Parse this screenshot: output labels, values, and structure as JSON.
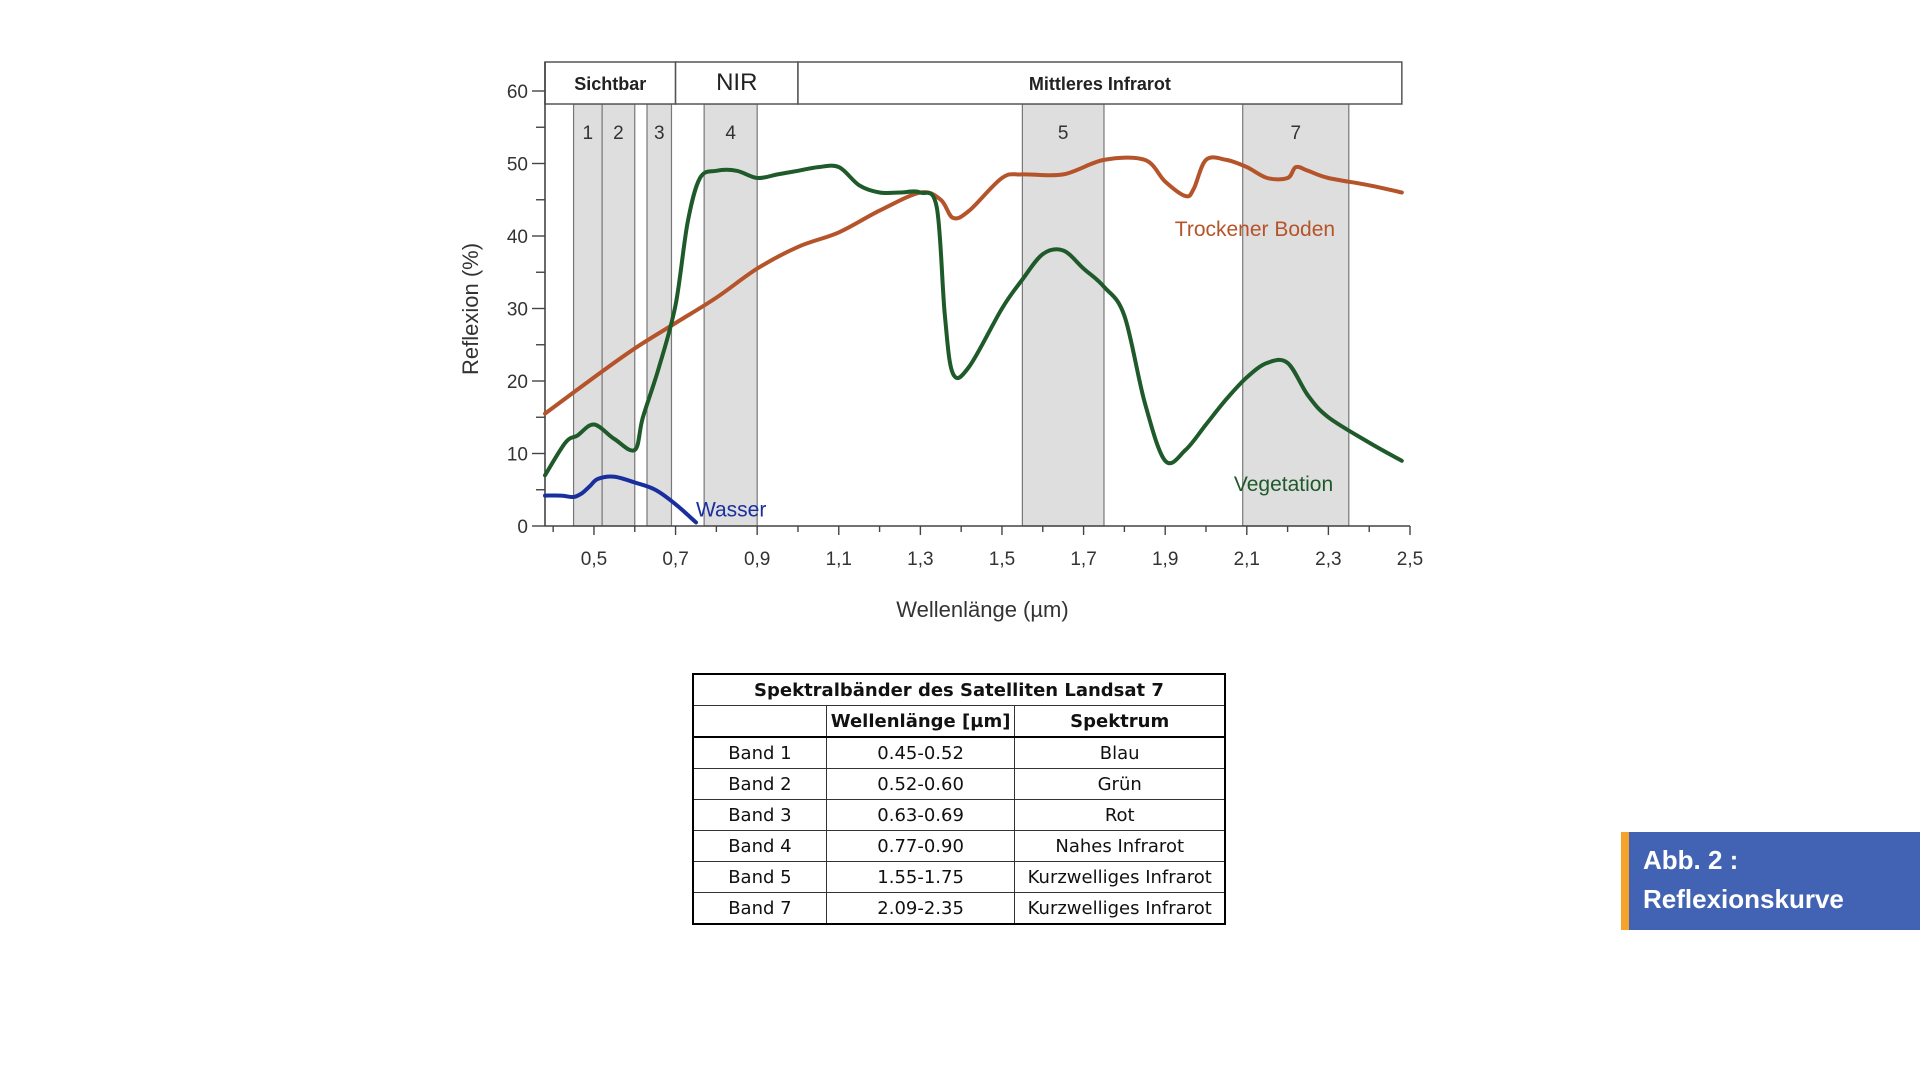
{
  "chart_data": {
    "type": "line",
    "xlabel": "Wellenlänge (µm)",
    "ylabel": "Reflexion (%)",
    "xlim": [
      0.38,
      2.5
    ],
    "ylim": [
      0,
      64
    ],
    "x_ticks": [
      0.5,
      0.7,
      0.9,
      1.1,
      1.3,
      1.5,
      1.7,
      1.9,
      2.1,
      2.3,
      2.5
    ],
    "x_tick_labels": [
      "0,5",
      "0,7",
      "0,9",
      "1,1",
      "1,3",
      "1,5",
      "1,7",
      "1,9",
      "2,1",
      "2,3",
      "2,5"
    ],
    "y_ticks": [
      0,
      10,
      20,
      30,
      40,
      50,
      60
    ],
    "y_tick_labels": [
      "0",
      "10",
      "20",
      "30",
      "40",
      "50",
      "60"
    ],
    "regions": [
      {
        "label": "Sichtbar",
        "range": [
          0.38,
          0.7
        ]
      },
      {
        "label": "NIR",
        "range": [
          0.7,
          1.0
        ]
      },
      {
        "label": "Mittleres Infrarot",
        "range": [
          1.0,
          2.48
        ]
      }
    ],
    "bands": [
      {
        "label": "1",
        "range": [
          0.45,
          0.52
        ]
      },
      {
        "label": "2",
        "range": [
          0.52,
          0.6
        ]
      },
      {
        "label": "3",
        "range": [
          0.63,
          0.69
        ]
      },
      {
        "label": "4",
        "range": [
          0.77,
          0.9
        ]
      },
      {
        "label": "5",
        "range": [
          1.55,
          1.75
        ]
      },
      {
        "label": "7",
        "range": [
          2.09,
          2.35
        ]
      }
    ],
    "series": [
      {
        "name": "Trockener Boden",
        "color": "#b5542a",
        "x": [
          0.38,
          0.5,
          0.6,
          0.7,
          0.8,
          0.9,
          1.0,
          1.1,
          1.2,
          1.3,
          1.35,
          1.38,
          1.42,
          1.5,
          1.55,
          1.65,
          1.75,
          1.85,
          1.9,
          1.95,
          1.97,
          2.0,
          2.05,
          2.1,
          2.15,
          2.2,
          2.22,
          2.25,
          2.3,
          2.4,
          2.48
        ],
        "values": [
          15.5,
          20.5,
          24.5,
          28.0,
          31.5,
          35.5,
          38.5,
          40.5,
          43.5,
          46.0,
          45.0,
          42.5,
          43.5,
          48.0,
          48.5,
          48.5,
          50.5,
          50.5,
          47.5,
          45.5,
          46.5,
          50.5,
          50.5,
          49.5,
          48.0,
          48.0,
          49.5,
          49.0,
          48.0,
          47.0,
          46.0
        ]
      },
      {
        "name": "Vegetation",
        "color": "#1e5a2a",
        "x": [
          0.38,
          0.43,
          0.46,
          0.5,
          0.55,
          0.6,
          0.62,
          0.66,
          0.7,
          0.73,
          0.76,
          0.8,
          0.85,
          0.9,
          0.95,
          1.0,
          1.05,
          1.1,
          1.15,
          1.2,
          1.25,
          1.3,
          1.34,
          1.36,
          1.38,
          1.42,
          1.5,
          1.55,
          1.6,
          1.65,
          1.7,
          1.75,
          1.8,
          1.85,
          1.9,
          1.95,
          2.0,
          2.05,
          2.1,
          2.15,
          2.2,
          2.25,
          2.3,
          2.4,
          2.48
        ],
        "values": [
          7.0,
          11.5,
          12.5,
          14.0,
          12.0,
          10.5,
          15.0,
          22.0,
          30.5,
          42.0,
          48.0,
          49.0,
          49.0,
          48.0,
          48.5,
          49.0,
          49.5,
          49.5,
          47.0,
          46.0,
          46.0,
          46.0,
          44.0,
          29.0,
          21.0,
          22.0,
          30.0,
          34.0,
          37.5,
          38.0,
          35.5,
          33.0,
          29.0,
          17.0,
          9.0,
          10.5,
          14.0,
          17.5,
          20.5,
          22.5,
          22.5,
          18.0,
          15.0,
          11.5,
          9.0
        ]
      },
      {
        "name": "Wasser",
        "color": "#1a2f9e",
        "x": [
          0.38,
          0.42,
          0.45,
          0.47,
          0.49,
          0.51,
          0.55,
          0.6,
          0.65,
          0.7,
          0.75
        ],
        "values": [
          4.2,
          4.2,
          4.0,
          4.5,
          5.5,
          6.5,
          6.8,
          6.0,
          5.0,
          3.0,
          0.5
        ]
      }
    ]
  },
  "table": {
    "title": "Spektralbänder des Satelliten Landsat 7",
    "headers": [
      "",
      "Wellenlänge [µm]",
      "Spektrum"
    ],
    "rows": [
      {
        "band": "Band 1",
        "wavelength": "0.45-0.52",
        "spectrum": "Blau"
      },
      {
        "band": "Band 2",
        "wavelength": "0.52-0.60",
        "spectrum": "Grün"
      },
      {
        "band": "Band 3",
        "wavelength": "0.63-0.69",
        "spectrum": "Rot"
      },
      {
        "band": "Band 4",
        "wavelength": "0.77-0.90",
        "spectrum": "Nahes Infrarot"
      },
      {
        "band": "Band 5",
        "wavelength": "1.55-1.75",
        "spectrum": "Kurzwelliges Infrarot"
      },
      {
        "band": "Band 7",
        "wavelength": "2.09-2.35",
        "spectrum": "Kurzwelliges Infrarot"
      }
    ]
  },
  "caption": {
    "line1": "Abb. 2 :",
    "line2": "Reflexionskurve"
  },
  "colors": {
    "caption_bg": "#4263b3",
    "caption_accent": "#f4a32b",
    "band_fill": "#dedede"
  }
}
